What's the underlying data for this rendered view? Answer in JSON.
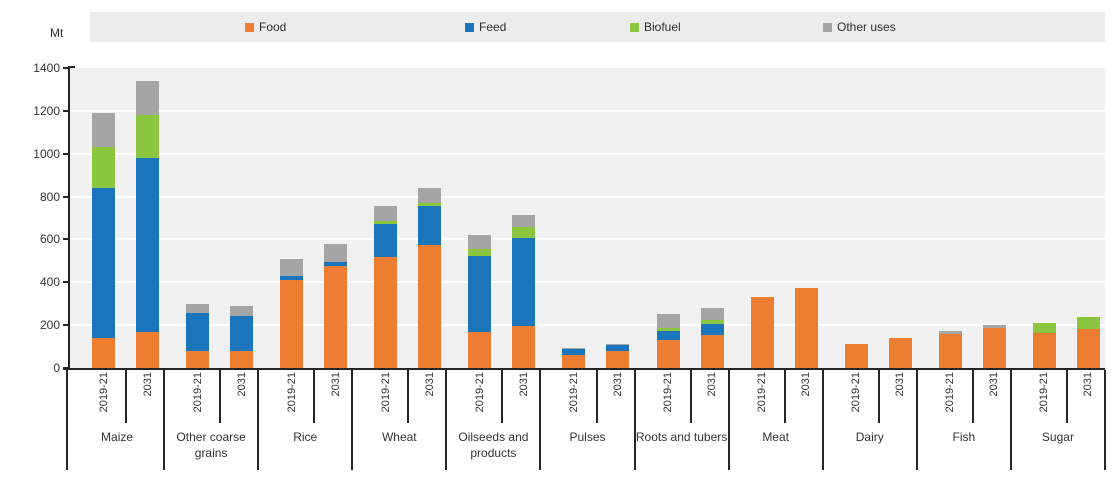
{
  "page": {
    "unit_label": "Mt"
  },
  "legend": {
    "items": [
      {
        "label": "Food",
        "color": "#ed7d31"
      },
      {
        "label": "Feed",
        "color": "#1b75bc"
      },
      {
        "label": "Biofuel",
        "color": "#8cc540"
      },
      {
        "label": "Other uses",
        "color": "#a5a5a5"
      }
    ]
  },
  "chart_data": {
    "type": "bar",
    "stacked": true,
    "title": "",
    "ylabel": "Mt",
    "xlabel": "",
    "ylim": [
      0,
      1400
    ],
    "ytick_step": 200,
    "grid": true,
    "legend_position": "top",
    "plot_background": "#f1f1f1",
    "categories": [
      "Maize",
      "Other coarse grains",
      "Rice",
      "Wheat",
      "Oilseeds and products",
      "Pulses",
      "Roots and tubers",
      "Meat",
      "Dairy",
      "Fish",
      "Sugar"
    ],
    "bar_labels_per_category": [
      "2019-21",
      "2031"
    ],
    "series": [
      {
        "name": "Food",
        "color": "#ed7d31",
        "values": [
          140,
          170,
          80,
          80,
          410,
          475,
          520,
          575,
          170,
          195,
          62,
          78,
          130,
          155,
          330,
          375,
          110,
          140,
          160,
          185,
          165,
          180
        ]
      },
      {
        "name": "Feed",
        "color": "#1b75bc",
        "values": [
          700,
          810,
          175,
          165,
          20,
          20,
          150,
          180,
          355,
          410,
          26,
          30,
          45,
          50,
          0,
          0,
          0,
          0,
          0,
          0,
          0,
          0
        ]
      },
      {
        "name": "Biofuel",
        "color": "#8cc540",
        "values": [
          190,
          200,
          0,
          0,
          0,
          0,
          15,
          15,
          30,
          55,
          0,
          0,
          10,
          20,
          0,
          0,
          0,
          0,
          0,
          0,
          45,
          60
        ]
      },
      {
        "name": "Other uses",
        "color": "#a5a5a5",
        "values": [
          160,
          160,
          45,
          45,
          80,
          85,
          70,
          70,
          65,
          55,
          4,
          5,
          65,
          55,
          0,
          0,
          0,
          0,
          15,
          15,
          0,
          0
        ]
      }
    ]
  }
}
